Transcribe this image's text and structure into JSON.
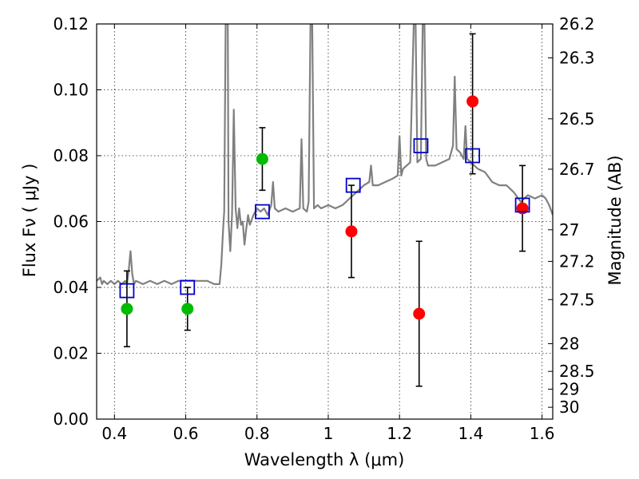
{
  "chart_data": {
    "type": "scatter",
    "xlabel": "Wavelength  λ (μm)",
    "ylabel": "Flux  Fν  ( μJy )",
    "ylabel_right": "Magnitude (AB)",
    "xlim": [
      0.35,
      1.63
    ],
    "ylim": [
      0.0,
      0.12
    ],
    "grid": true,
    "x_ticks": [
      0.4,
      0.6,
      0.8,
      1.0,
      1.2,
      1.4,
      1.6
    ],
    "x_tick_labels": [
      "0.4",
      "0.6",
      "0.8",
      "1",
      "1.2",
      "1.4",
      "1.6"
    ],
    "y_ticks": [
      0.0,
      0.02,
      0.04,
      0.06,
      0.08,
      0.1,
      0.12
    ],
    "y_tick_labels": [
      "0.00",
      "0.02",
      "0.04",
      "0.06",
      "0.08",
      "0.10",
      "0.12"
    ],
    "right_ticks": [
      {
        "label": "26.2",
        "flux": 0.12
      },
      {
        "label": "26.3",
        "flux": 0.1097
      },
      {
        "label": "26.5",
        "flux": 0.0912
      },
      {
        "label": "26.7",
        "flux": 0.0759
      },
      {
        "label": "27",
        "flux": 0.0575
      },
      {
        "label": "27.2",
        "flux": 0.0479
      },
      {
        "label": "27.5",
        "flux": 0.0363
      },
      {
        "label": "28",
        "flux": 0.0229
      },
      {
        "label": "28.5",
        "flux": 0.0145
      },
      {
        "label": "29",
        "flux": 0.0091
      },
      {
        "label": "30",
        "flux": 0.0036
      }
    ],
    "series": [
      {
        "marker": "circle",
        "color": "#00bb00",
        "points": [
          {
            "x": 0.435,
            "y": 0.0335
          },
          {
            "x": 0.605,
            "y": 0.0335
          },
          {
            "x": 0.815,
            "y": 0.079
          }
        ]
      },
      {
        "marker": "circle",
        "color": "#ff0000",
        "points": [
          {
            "x": 1.065,
            "y": 0.057
          },
          {
            "x": 1.255,
            "y": 0.032
          },
          {
            "x": 1.405,
            "y": 0.0965
          },
          {
            "x": 1.545,
            "y": 0.064
          }
        ]
      },
      {
        "marker": "open-square",
        "color": "#0000cc",
        "points": [
          {
            "x": 0.435,
            "y": 0.039
          },
          {
            "x": 0.605,
            "y": 0.04
          },
          {
            "x": 0.815,
            "y": 0.063
          },
          {
            "x": 1.07,
            "y": 0.071
          },
          {
            "x": 1.26,
            "y": 0.083
          },
          {
            "x": 1.405,
            "y": 0.08
          },
          {
            "x": 1.545,
            "y": 0.065
          }
        ]
      }
    ],
    "error_bars": [
      {
        "x": 0.435,
        "low": 0.022,
        "high": 0.045
      },
      {
        "x": 0.605,
        "low": 0.027,
        "high": 0.04
      },
      {
        "x": 0.815,
        "low": 0.0695,
        "high": 0.0885
      },
      {
        "x": 1.065,
        "low": 0.043,
        "high": 0.071
      },
      {
        "x": 1.255,
        "low": 0.01,
        "high": 0.054
      },
      {
        "x": 1.405,
        "low": 0.0745,
        "high": 0.117
      },
      {
        "x": 1.545,
        "low": 0.051,
        "high": 0.077
      }
    ],
    "spectrum": {
      "color": "#808080",
      "points": [
        [
          0.35,
          0.042
        ],
        [
          0.36,
          0.043
        ],
        [
          0.365,
          0.041
        ],
        [
          0.37,
          0.042
        ],
        [
          0.38,
          0.041
        ],
        [
          0.39,
          0.042
        ],
        [
          0.4,
          0.041
        ],
        [
          0.41,
          0.042
        ],
        [
          0.42,
          0.041
        ],
        [
          0.43,
          0.042
        ],
        [
          0.435,
          0.041
        ],
        [
          0.44,
          0.045
        ],
        [
          0.445,
          0.051
        ],
        [
          0.45,
          0.044
        ],
        [
          0.455,
          0.041
        ],
        [
          0.46,
          0.042
        ],
        [
          0.48,
          0.041
        ],
        [
          0.5,
          0.042
        ],
        [
          0.52,
          0.041
        ],
        [
          0.54,
          0.042
        ],
        [
          0.56,
          0.041
        ],
        [
          0.58,
          0.042
        ],
        [
          0.6,
          0.042
        ],
        [
          0.62,
          0.042
        ],
        [
          0.64,
          0.042
        ],
        [
          0.66,
          0.042
        ],
        [
          0.68,
          0.041
        ],
        [
          0.695,
          0.041
        ],
        [
          0.7,
          0.047
        ],
        [
          0.705,
          0.058
        ],
        [
          0.708,
          0.063
        ],
        [
          0.712,
          0.12
        ],
        [
          0.718,
          0.12
        ],
        [
          0.72,
          0.06
        ],
        [
          0.725,
          0.051
        ],
        [
          0.73,
          0.062
        ],
        [
          0.735,
          0.094
        ],
        [
          0.74,
          0.064
        ],
        [
          0.745,
          0.058
        ],
        [
          0.75,
          0.064
        ],
        [
          0.755,
          0.059
        ],
        [
          0.76,
          0.06
        ],
        [
          0.765,
          0.053
        ],
        [
          0.77,
          0.058
        ],
        [
          0.775,
          0.062
        ],
        [
          0.78,
          0.059
        ],
        [
          0.79,
          0.062
        ],
        [
          0.8,
          0.064
        ],
        [
          0.81,
          0.063
        ],
        [
          0.82,
          0.064
        ],
        [
          0.83,
          0.062
        ],
        [
          0.84,
          0.065
        ],
        [
          0.845,
          0.072
        ],
        [
          0.85,
          0.064
        ],
        [
          0.86,
          0.063
        ],
        [
          0.88,
          0.064
        ],
        [
          0.9,
          0.063
        ],
        [
          0.92,
          0.064
        ],
        [
          0.925,
          0.085
        ],
        [
          0.93,
          0.064
        ],
        [
          0.94,
          0.063
        ],
        [
          0.945,
          0.066
        ],
        [
          0.95,
          0.12
        ],
        [
          0.955,
          0.12
        ],
        [
          0.96,
          0.064
        ],
        [
          0.97,
          0.065
        ],
        [
          0.98,
          0.064
        ],
        [
          1.0,
          0.065
        ],
        [
          1.02,
          0.064
        ],
        [
          1.04,
          0.065
        ],
        [
          1.05,
          0.066
        ],
        [
          1.06,
          0.067
        ],
        [
          1.07,
          0.068
        ],
        [
          1.08,
          0.069
        ],
        [
          1.09,
          0.07
        ],
        [
          1.1,
          0.071
        ],
        [
          1.115,
          0.072
        ],
        [
          1.12,
          0.077
        ],
        [
          1.125,
          0.071
        ],
        [
          1.14,
          0.071
        ],
        [
          1.16,
          0.072
        ],
        [
          1.18,
          0.073
        ],
        [
          1.195,
          0.074
        ],
        [
          1.2,
          0.086
        ],
        [
          1.205,
          0.074
        ],
        [
          1.21,
          0.076
        ],
        [
          1.22,
          0.077
        ],
        [
          1.23,
          0.078
        ],
        [
          1.24,
          0.12
        ],
        [
          1.245,
          0.12
        ],
        [
          1.25,
          0.078
        ],
        [
          1.26,
          0.079
        ],
        [
          1.265,
          0.12
        ],
        [
          1.27,
          0.12
        ],
        [
          1.275,
          0.079
        ],
        [
          1.28,
          0.077
        ],
        [
          1.3,
          0.077
        ],
        [
          1.32,
          0.078
        ],
        [
          1.34,
          0.079
        ],
        [
          1.35,
          0.083
        ],
        [
          1.355,
          0.104
        ],
        [
          1.36,
          0.082
        ],
        [
          1.37,
          0.081
        ],
        [
          1.38,
          0.079
        ],
        [
          1.385,
          0.089
        ],
        [
          1.39,
          0.079
        ],
        [
          1.4,
          0.078
        ],
        [
          1.41,
          0.077
        ],
        [
          1.42,
          0.076
        ],
        [
          1.44,
          0.075
        ],
        [
          1.46,
          0.072
        ],
        [
          1.48,
          0.071
        ],
        [
          1.5,
          0.071
        ],
        [
          1.52,
          0.069
        ],
        [
          1.54,
          0.066
        ],
        [
          1.56,
          0.068
        ],
        [
          1.58,
          0.067
        ],
        [
          1.6,
          0.068
        ],
        [
          1.61,
          0.067
        ],
        [
          1.62,
          0.065
        ],
        [
          1.63,
          0.062
        ]
      ]
    }
  }
}
